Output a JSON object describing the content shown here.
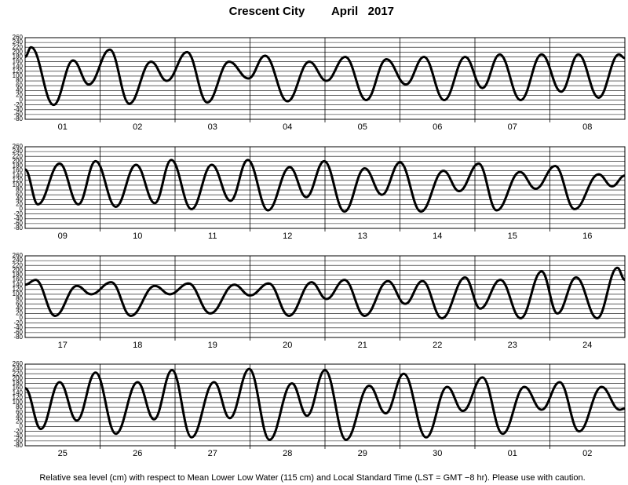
{
  "title": {
    "place": "Crescent City",
    "date": "April   2017"
  },
  "footnote": "Relative sea level (cm) with respect to Mean Lower Low Water (115 cm) and Local Standard Time (LST = GMT −8 hr). Please use with caution.",
  "chart_data": [
    {
      "type": "line",
      "grid": true,
      "xlim": [
        0,
        8
      ],
      "ylim": [
        -80,
        260
      ],
      "yticks": [
        -80,
        -60,
        -40,
        -20,
        0,
        20,
        40,
        60,
        80,
        100,
        120,
        140,
        160,
        180,
        200,
        220,
        240,
        260
      ],
      "xticks": [
        {
          "value": 0.5,
          "label": "01"
        },
        {
          "value": 1.5,
          "label": "02"
        },
        {
          "value": 2.5,
          "label": "03"
        },
        {
          "value": 3.5,
          "label": "04"
        },
        {
          "value": 4.5,
          "label": "05"
        },
        {
          "value": 5.5,
          "label": "06"
        },
        {
          "value": 6.5,
          "label": "07"
        },
        {
          "value": 7.5,
          "label": "08"
        }
      ],
      "x": [
        0,
        0.08,
        0.38,
        0.64,
        0.85,
        1.13,
        1.39,
        1.68,
        1.89,
        2.16,
        2.43,
        2.72,
        2.98,
        3.2,
        3.5,
        3.79,
        4.02,
        4.27,
        4.55,
        4.82,
        5.08,
        5.32,
        5.59,
        5.87,
        6.1,
        6.33,
        6.61,
        6.89,
        7.15,
        7.38,
        7.65,
        7.92,
        8
      ],
      "series": [
        {
          "color": "#000000",
          "values": [
            180,
            220,
            -20,
            165,
            65,
            210,
            -15,
            160,
            80,
            200,
            -10,
            160,
            90,
            185,
            -5,
            160,
            80,
            180,
            0,
            170,
            65,
            180,
            0,
            180,
            50,
            190,
            0,
            190,
            35,
            190,
            10,
            190,
            175
          ]
        }
      ]
    },
    {
      "type": "line",
      "grid": true,
      "xlim": [
        0,
        8
      ],
      "ylim": [
        -80,
        260
      ],
      "yticks": [
        -80,
        -60,
        -40,
        -20,
        0,
        20,
        40,
        60,
        80,
        100,
        120,
        140,
        160,
        180,
        200,
        220,
        240,
        260
      ],
      "xticks": [
        {
          "value": 0.5,
          "label": "09"
        },
        {
          "value": 1.5,
          "label": "10"
        },
        {
          "value": 2.5,
          "label": "11"
        },
        {
          "value": 3.5,
          "label": "12"
        },
        {
          "value": 4.5,
          "label": "13"
        },
        {
          "value": 5.5,
          "label": "14"
        },
        {
          "value": 6.5,
          "label": "15"
        },
        {
          "value": 7.5,
          "label": "16"
        }
      ],
      "x": [
        0,
        0.17,
        0.46,
        0.71,
        0.94,
        1.21,
        1.48,
        1.73,
        1.95,
        2.22,
        2.49,
        2.74,
        2.97,
        3.24,
        3.53,
        3.75,
        3.99,
        4.26,
        4.53,
        4.76,
        5.0,
        5.28,
        5.58,
        5.79,
        6.05,
        6.29,
        6.6,
        6.81,
        7.07,
        7.33,
        7.65,
        7.83,
        8
      ],
      "series": [
        {
          "color": "#000000",
          "values": [
            165,
            20,
            190,
            20,
            200,
            10,
            185,
            25,
            205,
            0,
            185,
            35,
            205,
            -5,
            175,
            50,
            200,
            -10,
            170,
            60,
            195,
            -10,
            160,
            75,
            190,
            -5,
            155,
            85,
            180,
            0,
            145,
            95,
            140
          ]
        }
      ]
    },
    {
      "type": "line",
      "grid": true,
      "xlim": [
        0,
        8
      ],
      "ylim": [
        -80,
        260
      ],
      "yticks": [
        -80,
        -60,
        -40,
        -20,
        0,
        20,
        40,
        60,
        80,
        100,
        120,
        140,
        160,
        180,
        200,
        220,
        240,
        260
      ],
      "xticks": [
        {
          "value": 0.5,
          "label": "17"
        },
        {
          "value": 1.5,
          "label": "18"
        },
        {
          "value": 2.5,
          "label": "19"
        },
        {
          "value": 3.5,
          "label": "20"
        },
        {
          "value": 4.5,
          "label": "21"
        },
        {
          "value": 5.5,
          "label": "22"
        },
        {
          "value": 6.5,
          "label": "23"
        },
        {
          "value": 7.5,
          "label": "24"
        }
      ],
      "x": [
        0,
        0.14,
        0.4,
        0.69,
        0.88,
        1.15,
        1.41,
        1.73,
        1.93,
        2.18,
        2.47,
        2.79,
        3.0,
        3.25,
        3.52,
        3.82,
        4.02,
        4.26,
        4.53,
        4.84,
        5.07,
        5.3,
        5.56,
        5.87,
        6.07,
        6.34,
        6.61,
        6.89,
        7.1,
        7.35,
        7.63,
        7.9,
        8
      ],
      "series": [
        {
          "color": "#000000",
          "values": [
            140,
            160,
            10,
            135,
            100,
            150,
            10,
            135,
            100,
            145,
            20,
            140,
            95,
            145,
            10,
            150,
            80,
            160,
            10,
            155,
            60,
            155,
            0,
            170,
            40,
            160,
            0,
            195,
            20,
            170,
            0,
            210,
            160
          ]
        }
      ]
    },
    {
      "type": "line",
      "grid": true,
      "xlim": [
        0,
        8
      ],
      "ylim": [
        -80,
        260
      ],
      "yticks": [
        -80,
        -60,
        -40,
        -20,
        0,
        20,
        40,
        60,
        80,
        100,
        120,
        140,
        160,
        180,
        200,
        220,
        240,
        260
      ],
      "xticks": [
        {
          "value": 0.5,
          "label": "25"
        },
        {
          "value": 1.5,
          "label": "26"
        },
        {
          "value": 2.5,
          "label": "27"
        },
        {
          "value": 3.5,
          "label": "28"
        },
        {
          "value": 4.5,
          "label": "29"
        },
        {
          "value": 5.5,
          "label": "30"
        },
        {
          "value": 6.5,
          "label": "01"
        },
        {
          "value": 7.5,
          "label": "02"
        }
      ],
      "x": [
        0,
        0.21,
        0.46,
        0.69,
        0.94,
        1.21,
        1.5,
        1.72,
        1.96,
        2.22,
        2.52,
        2.73,
        2.99,
        3.26,
        3.56,
        3.76,
        4.0,
        4.28,
        4.59,
        4.81,
        5.05,
        5.35,
        5.63,
        5.84,
        6.1,
        6.37,
        6.66,
        6.89,
        7.13,
        7.39,
        7.69,
        7.93,
        8
      ],
      "series": [
        {
          "color": "#000000",
          "values": [
            160,
            -10,
            185,
            25,
            225,
            -30,
            185,
            30,
            235,
            -45,
            185,
            35,
            240,
            -55,
            180,
            45,
            235,
            -55,
            170,
            55,
            220,
            -45,
            165,
            65,
            205,
            -30,
            165,
            70,
            185,
            -20,
            165,
            70,
            75
          ]
        }
      ]
    }
  ]
}
